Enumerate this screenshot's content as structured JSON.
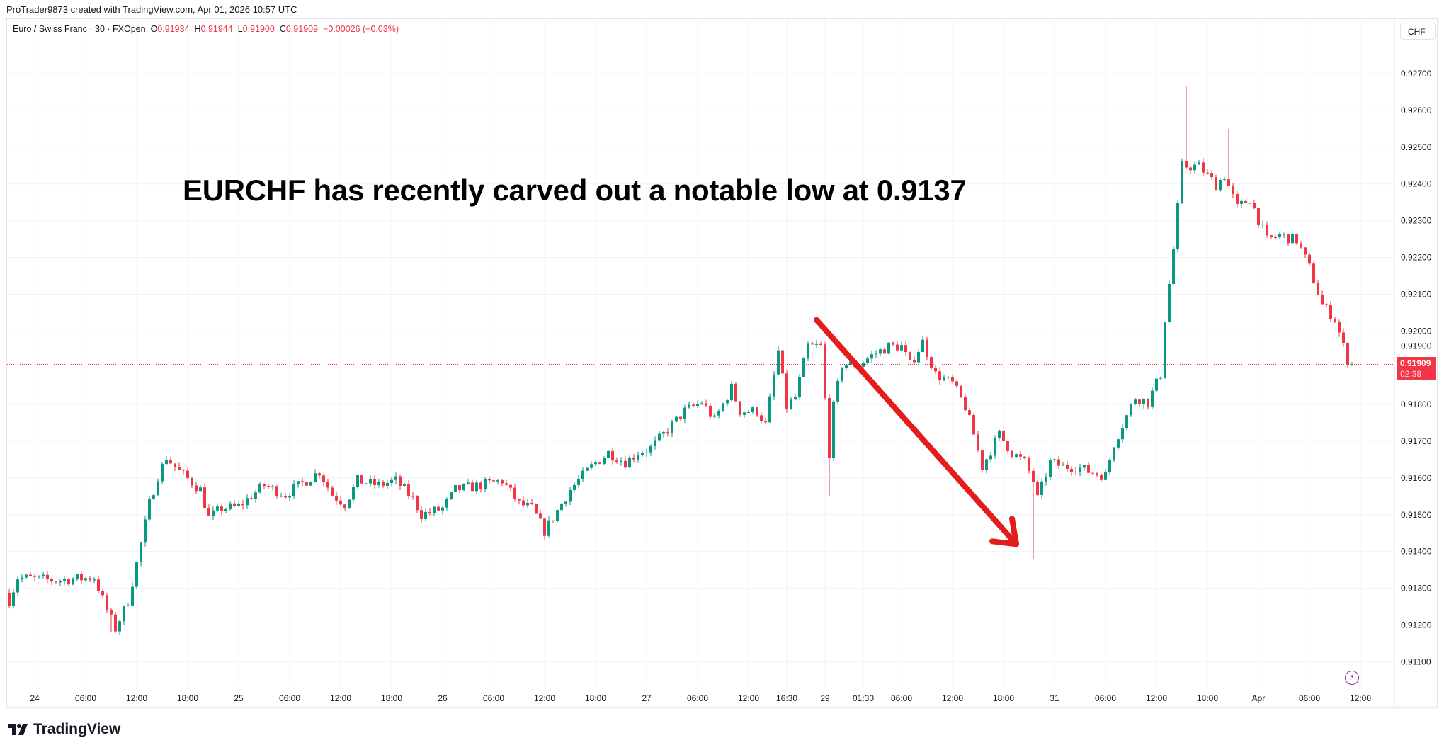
{
  "credit": "ProTrader9873 created with TradingView.com, Apr 01, 2026 10:57 UTC",
  "legend": {
    "symbol": "Euro / Swiss Franc · 30 · FXOpen",
    "o_label": "O",
    "o": "0.91934",
    "h_label": "H",
    "h": "0.91944",
    "l_label": "L",
    "l": "0.91900",
    "c_label": "C",
    "c": "0.91909",
    "change": "−0.00026 (−0.03%)"
  },
  "currency_button": "CHF",
  "annotation": "EURCHF has recently carved out a notable low at 0.9137",
  "last_price": {
    "price": "0.91909",
    "countdown": "02:38"
  },
  "logo_text": "TradingView",
  "colors": {
    "up": "#089981",
    "down": "#f23645",
    "arrow": "#e51c1c",
    "grid": "#f0f3fa"
  },
  "chart_data": {
    "type": "candlestick",
    "symbol": "EURCHF",
    "interval_minutes": 30,
    "ylim": [
      0.9105,
      0.9275
    ],
    "y_ticks": [
      "0.92700",
      "0.92600",
      "0.92500",
      "0.92400",
      "0.92300",
      "0.92200",
      "0.92100",
      "0.92000",
      "0.91900",
      "0.91800",
      "0.91700",
      "0.91600",
      "0.91500",
      "0.91400",
      "0.91300",
      "0.91200",
      "0.91100"
    ],
    "x_ticks": [
      {
        "bar": 6,
        "label": "24"
      },
      {
        "bar": 18,
        "label": "06:00"
      },
      {
        "bar": 30,
        "label": "12:00"
      },
      {
        "bar": 42,
        "label": "18:00"
      },
      {
        "bar": 54,
        "label": "25"
      },
      {
        "bar": 66,
        "label": "06:00"
      },
      {
        "bar": 78,
        "label": "12:00"
      },
      {
        "bar": 90,
        "label": "18:00"
      },
      {
        "bar": 102,
        "label": "26"
      },
      {
        "bar": 114,
        "label": "06:00"
      },
      {
        "bar": 126,
        "label": "12:00"
      },
      {
        "bar": 138,
        "label": "18:00"
      },
      {
        "bar": 150,
        "label": "27"
      },
      {
        "bar": 162,
        "label": "06:00"
      },
      {
        "bar": 174,
        "label": "12:00"
      },
      {
        "bar": 183,
        "label": "16:30"
      },
      {
        "bar": 192,
        "label": "29"
      },
      {
        "bar": 201,
        "label": "01:30"
      },
      {
        "bar": 210,
        "label": "06:00"
      },
      {
        "bar": 222,
        "label": "12:00"
      },
      {
        "bar": 234,
        "label": "18:00"
      },
      {
        "bar": 246,
        "label": "31"
      },
      {
        "bar": 258,
        "label": "06:00"
      },
      {
        "bar": 270,
        "label": "12:00"
      },
      {
        "bar": 282,
        "label": "18:00"
      },
      {
        "bar": 294,
        "label": "Apr"
      },
      {
        "bar": 306,
        "label": "06:00"
      },
      {
        "bar": 318,
        "label": "12:00"
      }
    ],
    "close_path": [
      [
        0,
        0.91266
      ],
      [
        2,
        0.91329
      ],
      [
        11,
        0.91321
      ],
      [
        20,
        0.91329
      ],
      [
        23,
        0.91241
      ],
      [
        25,
        0.9119
      ],
      [
        28,
        0.91266
      ],
      [
        30,
        0.91367
      ],
      [
        33,
        0.9153
      ],
      [
        35,
        0.91606
      ],
      [
        37,
        0.91656
      ],
      [
        40,
        0.91618
      ],
      [
        45,
        0.91568
      ],
      [
        47,
        0.91492
      ],
      [
        50,
        0.91517
      ],
      [
        54,
        0.91522
      ],
      [
        60,
        0.9158
      ],
      [
        65,
        0.91555
      ],
      [
        70,
        0.91593
      ],
      [
        73,
        0.91618
      ],
      [
        76,
        0.91555
      ],
      [
        79,
        0.9153
      ],
      [
        82,
        0.91593
      ],
      [
        87,
        0.9158
      ],
      [
        91,
        0.91593
      ],
      [
        95,
        0.91543
      ],
      [
        97,
        0.915
      ],
      [
        102,
        0.91517
      ],
      [
        105,
        0.91568
      ],
      [
        111,
        0.9158
      ],
      [
        116,
        0.91593
      ],
      [
        120,
        0.9153
      ],
      [
        123,
        0.91517
      ],
      [
        126,
        0.91455
      ],
      [
        128,
        0.91492
      ],
      [
        132,
        0.91568
      ],
      [
        137,
        0.91631
      ],
      [
        141,
        0.91669
      ],
      [
        145,
        0.91643
      ],
      [
        148,
        0.91669
      ],
      [
        151,
        0.91681
      ],
      [
        155,
        0.91731
      ],
      [
        159,
        0.91782
      ],
      [
        163,
        0.91807
      ],
      [
        166,
        0.91757
      ],
      [
        170,
        0.91845
      ],
      [
        172,
        0.91782
      ],
      [
        176,
        0.91782
      ],
      [
        178,
        0.91744
      ],
      [
        181,
        0.91945
      ],
      [
        183,
        0.91794
      ],
      [
        185,
        0.91819
      ],
      [
        188,
        0.91958
      ],
      [
        191,
        0.91958
      ],
      [
        193,
        0.91669
      ],
      [
        194,
        0.91794
      ],
      [
        196,
        0.91908
      ],
      [
        200,
        0.91908
      ],
      [
        203,
        0.91933
      ],
      [
        207,
        0.91958
      ],
      [
        210,
        0.91958
      ],
      [
        212,
        0.91908
      ],
      [
        215,
        0.9197
      ],
      [
        218,
        0.91882
      ],
      [
        222,
        0.91857
      ],
      [
        225,
        0.91794
      ],
      [
        227,
        0.91719
      ],
      [
        229,
        0.91631
      ],
      [
        233,
        0.91719
      ],
      [
        236,
        0.91669
      ],
      [
        239,
        0.91643
      ],
      [
        241,
        0.91593
      ],
      [
        242,
        0.91543
      ],
      [
        245,
        0.91643
      ],
      [
        248,
        0.91631
      ],
      [
        251,
        0.91631
      ],
      [
        254,
        0.91618
      ],
      [
        258,
        0.91606
      ],
      [
        260,
        0.91694
      ],
      [
        262,
        0.91744
      ],
      [
        265,
        0.91819
      ],
      [
        268,
        0.91807
      ],
      [
        271,
        0.91882
      ],
      [
        272,
        0.92033
      ],
      [
        274,
        0.92222
      ],
      [
        276,
        0.92448
      ],
      [
        278,
        0.92448
      ],
      [
        280,
        0.92448
      ],
      [
        284,
        0.92398
      ],
      [
        286,
        0.92423
      ],
      [
        289,
        0.92335
      ],
      [
        292,
        0.9236
      ],
      [
        296,
        0.92247
      ],
      [
        299,
        0.9226
      ],
      [
        303,
        0.92247
      ],
      [
        306,
        0.92172
      ],
      [
        309,
        0.92071
      ],
      [
        312,
        0.92033
      ],
      [
        315,
        0.9192
      ],
      [
        316,
        0.91909
      ]
    ],
    "notable_wicks": [
      {
        "bar": 241,
        "low": 0.91379
      },
      {
        "bar": 277,
        "high": 0.92667
      },
      {
        "bar": 193,
        "low": 0.9155
      },
      {
        "bar": 287,
        "high": 0.9255
      },
      {
        "bar": 24,
        "low": 0.9118
      }
    ],
    "last_price": 0.91909,
    "annotation_arrow": {
      "from": [
        190,
        0.9203
      ],
      "to": [
        237,
        0.9142
      ]
    }
  }
}
